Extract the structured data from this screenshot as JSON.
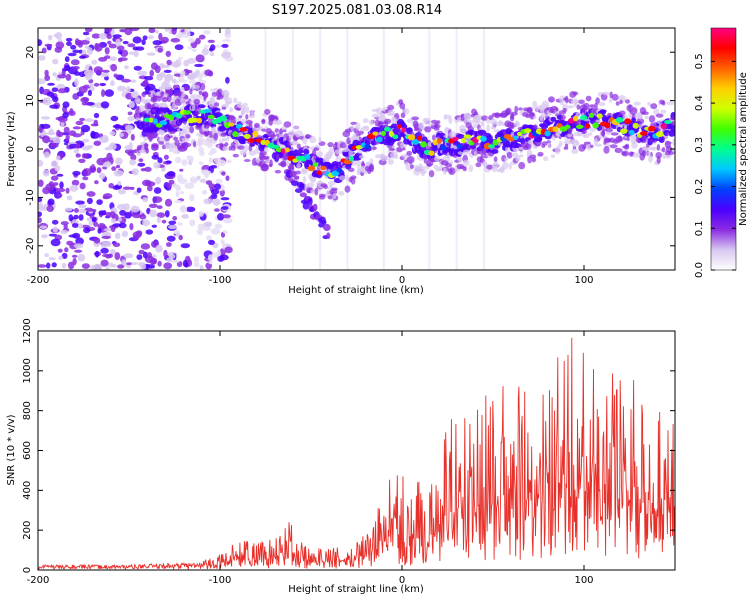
{
  "title": "S197.2025.081.03.08.R14",
  "chart_data": [
    {
      "type": "heatmap",
      "name": "spectrogram",
      "xlabel": "Height of straight line (km)",
      "ylabel": "Frequency (Hz)",
      "xlim": [
        -200,
        150
      ],
      "ylim": [
        -25,
        25
      ],
      "xticks": [
        -200,
        -100,
        0,
        100
      ],
      "xtick_labels": [
        "-200",
        "-100",
        "0",
        "100"
      ],
      "yticks": [
        -20,
        -10,
        0,
        10,
        20
      ],
      "ytick_labels": [
        "-20",
        "-10",
        "0",
        "10",
        "20"
      ],
      "noise_region_x": [
        -200,
        -105
      ],
      "ridge": {
        "x": [
          -145,
          -135,
          -125,
          -115,
          -105,
          -95,
          -85,
          -75,
          -65,
          -55,
          -45,
          -40,
          -35,
          -30,
          -25,
          -20,
          -15,
          -10,
          -5,
          0,
          5,
          10,
          15,
          20,
          30,
          40,
          50,
          60,
          70,
          80,
          90,
          100,
          110,
          120,
          130,
          140,
          148
        ],
        "y": [
          5,
          6,
          6,
          7,
          7,
          5,
          3,
          2,
          0,
          -2,
          -4,
          -4,
          -5,
          -2,
          0,
          1,
          2,
          3,
          3,
          4,
          2,
          1,
          0,
          1,
          1,
          2,
          1,
          2,
          3,
          4,
          5,
          6,
          6,
          5,
          4,
          3,
          5
        ]
      },
      "branch": {
        "x": [
          -70,
          -62,
          -55,
          -50,
          -45,
          -40
        ],
        "y": [
          0,
          -4,
          -9,
          -12,
          -15,
          -18
        ]
      },
      "colorbar": {
        "label": "Normalized spectral amplitude",
        "range": [
          0,
          0.58
        ],
        "ticks": [
          0.0,
          0.1,
          0.2,
          0.3,
          0.4,
          0.5
        ],
        "tick_labels": [
          "0.0",
          "0.1",
          "0.2",
          "0.3",
          "0.4",
          "0.5"
        ],
        "colors": [
          "#ffffff",
          "#d8c8f0",
          "#8a2be2",
          "#4b00ff",
          "#0040ff",
          "#00c8ff",
          "#00ff90",
          "#40ff00",
          "#d0ff00",
          "#ffd000",
          "#ff6000",
          "#ff0000",
          "#ff0080"
        ]
      }
    },
    {
      "type": "line",
      "name": "snr",
      "xlabel": "Height of straight line (km)",
      "ylabel": "SNR (10 * v/v)",
      "xlim": [
        -200,
        150
      ],
      "ylim": [
        0,
        1200
      ],
      "xticks": [
        -200,
        -100,
        0,
        100
      ],
      "xtick_labels": [
        "-200",
        "-100",
        "0",
        "100"
      ],
      "yticks": [
        0,
        200,
        400,
        600,
        800,
        1000,
        1200
      ],
      "ytick_labels": [
        "0",
        "200",
        "400",
        "600",
        "800",
        "1000",
        "1200"
      ],
      "line_color": "#e8302a",
      "envelope": {
        "x": [
          -200,
          -150,
          -110,
          -100,
          -90,
          -80,
          -70,
          -65,
          -60,
          -55,
          -50,
          -40,
          -30,
          -20,
          -15,
          -10,
          -5,
          0,
          5,
          10,
          15,
          20,
          25,
          30,
          40,
          50,
          60,
          70,
          80,
          85,
          90,
          95,
          100,
          110,
          120,
          130,
          140,
          150
        ],
        "y": [
          30,
          30,
          50,
          80,
          150,
          140,
          160,
          230,
          290,
          150,
          100,
          120,
          110,
          200,
          280,
          400,
          500,
          500,
          450,
          500,
          450,
          500,
          800,
          750,
          850,
          900,
          950,
          900,
          1000,
          1100,
          1200,
          1150,
          1150,
          1050,
          1000,
          950,
          900,
          800
        ]
      }
    }
  ]
}
